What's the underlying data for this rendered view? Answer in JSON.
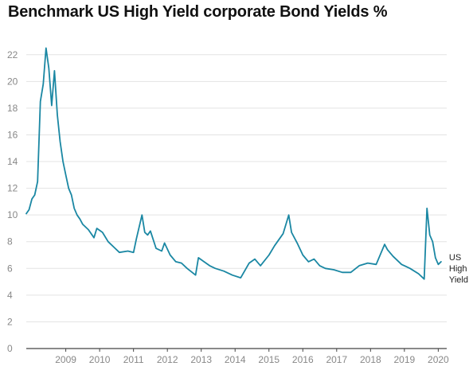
{
  "chart_data": {
    "type": "line",
    "title": "Benchmark US High Yield corporate Bond Yields %",
    "xlabel": "",
    "ylabel": "",
    "ylim": [
      0,
      23
    ],
    "y_ticks": [
      0,
      2,
      4,
      6,
      8,
      10,
      12,
      14,
      16,
      18,
      20,
      22
    ],
    "x_ticks": [
      "2009",
      "2010",
      "2011",
      "2012",
      "2013",
      "2014",
      "2015",
      "2016",
      "2017",
      "2018",
      "2019",
      "2020"
    ],
    "xlim": [
      "2008-05",
      "2020-10"
    ],
    "grid": "horizontal",
    "legend": "none",
    "series": [
      {
        "name": "US High Yield",
        "color": "#1a87a3",
        "points": [
          [
            "2008-05",
            10.1
          ],
          [
            "2008-06",
            10.4
          ],
          [
            "2008-07",
            11.2
          ],
          [
            "2008-08",
            11.5
          ],
          [
            "2008-09",
            12.5
          ],
          [
            "2008-10",
            18.5
          ],
          [
            "2008-11",
            19.8
          ],
          [
            "2008-12",
            22.5
          ],
          [
            "2009-01",
            21.0
          ],
          [
            "2009-02",
            18.2
          ],
          [
            "2009-03",
            20.8
          ],
          [
            "2009-04",
            17.5
          ],
          [
            "2009-05",
            15.5
          ],
          [
            "2009-06",
            14.0
          ],
          [
            "2009-07",
            13.0
          ],
          [
            "2009-08",
            12.0
          ],
          [
            "2009-09",
            11.5
          ],
          [
            "2009-10",
            10.5
          ],
          [
            "2009-11",
            10.0
          ],
          [
            "2009-12",
            9.7
          ],
          [
            "2010-01",
            9.3
          ],
          [
            "2010-03",
            8.9
          ],
          [
            "2010-05",
            8.3
          ],
          [
            "2010-06",
            9.0
          ],
          [
            "2010-08",
            8.7
          ],
          [
            "2010-10",
            8.0
          ],
          [
            "2010-12",
            7.6
          ],
          [
            "2011-02",
            7.2
          ],
          [
            "2011-05",
            7.3
          ],
          [
            "2011-07",
            7.2
          ],
          [
            "2011-08",
            8.2
          ],
          [
            "2011-10",
            10.0
          ],
          [
            "2011-11",
            8.7
          ],
          [
            "2011-12",
            8.5
          ],
          [
            "2012-01",
            8.8
          ],
          [
            "2012-03",
            7.5
          ],
          [
            "2012-05",
            7.3
          ],
          [
            "2012-06",
            7.9
          ],
          [
            "2012-08",
            7.0
          ],
          [
            "2012-10",
            6.5
          ],
          [
            "2012-12",
            6.4
          ],
          [
            "2013-02",
            6.0
          ],
          [
            "2013-05",
            5.5
          ],
          [
            "2013-06",
            6.8
          ],
          [
            "2013-08",
            6.5
          ],
          [
            "2013-10",
            6.2
          ],
          [
            "2013-12",
            6.0
          ],
          [
            "2014-03",
            5.8
          ],
          [
            "2014-06",
            5.5
          ],
          [
            "2014-09",
            5.3
          ],
          [
            "2014-12",
            6.4
          ],
          [
            "2015-02",
            6.7
          ],
          [
            "2015-04",
            6.2
          ],
          [
            "2015-07",
            7.0
          ],
          [
            "2015-09",
            7.7
          ],
          [
            "2015-12",
            8.6
          ],
          [
            "2016-02",
            10.0
          ],
          [
            "2016-03",
            8.7
          ],
          [
            "2016-05",
            7.9
          ],
          [
            "2016-07",
            7.0
          ],
          [
            "2016-09",
            6.5
          ],
          [
            "2016-11",
            6.7
          ],
          [
            "2017-01",
            6.2
          ],
          [
            "2017-03",
            6.0
          ],
          [
            "2017-06",
            5.9
          ],
          [
            "2017-09",
            5.7
          ],
          [
            "2017-12",
            5.7
          ],
          [
            "2018-03",
            6.2
          ],
          [
            "2018-06",
            6.4
          ],
          [
            "2018-09",
            6.3
          ],
          [
            "2018-12",
            7.8
          ],
          [
            "2019-01",
            7.4
          ],
          [
            "2019-03",
            6.9
          ],
          [
            "2019-06",
            6.3
          ],
          [
            "2019-09",
            6.0
          ],
          [
            "2019-12",
            5.6
          ],
          [
            "2020-02",
            5.2
          ],
          [
            "2020-03",
            10.5
          ],
          [
            "2020-04",
            8.5
          ],
          [
            "2020-05",
            8.0
          ],
          [
            "2020-06",
            6.8
          ],
          [
            "2020-07",
            6.3
          ],
          [
            "2020-08",
            6.5
          ]
        ]
      }
    ],
    "series_label_lines": [
      "US",
      "High",
      "Yield"
    ]
  }
}
